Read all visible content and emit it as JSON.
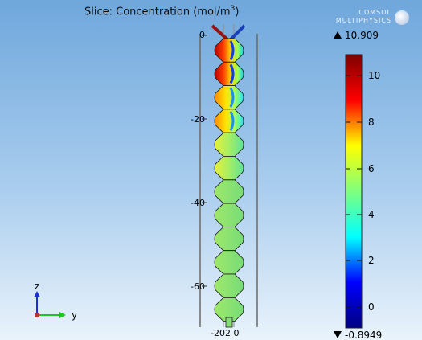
{
  "plot": {
    "title": "Slice: Concentration (mol/m",
    "title_sup": "3",
    "title_close": ")"
  },
  "brand": {
    "line1": "COMSOL",
    "line2": "MULTIPHYSICS"
  },
  "colorbar": {
    "max_label": "10.909",
    "min_label": "-0.8949",
    "ticks": [
      "10",
      "8",
      "6",
      "4",
      "2",
      "0"
    ],
    "colors": [
      "#000080",
      "#0000ff",
      "#00ffff",
      "#7fff7f",
      "#ffff00",
      "#ff0000",
      "#7f0000"
    ]
  },
  "z_axis": {
    "tick_labels": [
      "0",
      "-20",
      "-40",
      "-60"
    ]
  },
  "y_axis": {
    "tick_labels": "-202 0΢"
  },
  "triad": {
    "z_label": "z",
    "y_label": "y",
    "z_color": "#1a2fd6",
    "y_color": "#1fc41f",
    "x_color": "#c0302e"
  }
}
